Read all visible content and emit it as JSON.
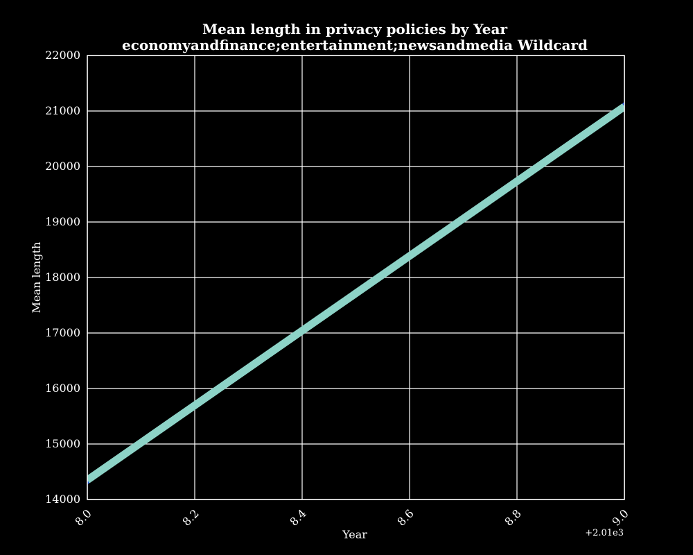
{
  "chart_data": {
    "type": "line",
    "title": "Mean length in privacy policies by Year",
    "subtitle": "economyandfinance;entertainment;newsandmedia Wildcard",
    "xlabel": "Year",
    "ylabel": "Mean length",
    "x_offset_label": "+2.01e3",
    "xlim": [
      8.0,
      9.0
    ],
    "ylim": [
      14000,
      22000
    ],
    "x_ticks": [
      8.0,
      8.2,
      8.4,
      8.6,
      8.8,
      9.0
    ],
    "x_tick_labels": [
      "8.0",
      "8.2",
      "8.4",
      "8.6",
      "8.8",
      "9.0"
    ],
    "y_ticks": [
      14000,
      15000,
      16000,
      17000,
      18000,
      19000,
      20000,
      21000,
      22000
    ],
    "y_tick_labels": [
      "14000",
      "15000",
      "16000",
      "17000",
      "18000",
      "19000",
      "20000",
      "21000",
      "22000"
    ],
    "grid": true,
    "background_color": "#000000",
    "axes_color": "#ffffff",
    "series": [
      {
        "x": [
          8.0,
          9.0
        ],
        "y": [
          14350,
          21080
        ],
        "color": "#8dd3c7",
        "marker_color": "#1f4fd8"
      }
    ]
  }
}
